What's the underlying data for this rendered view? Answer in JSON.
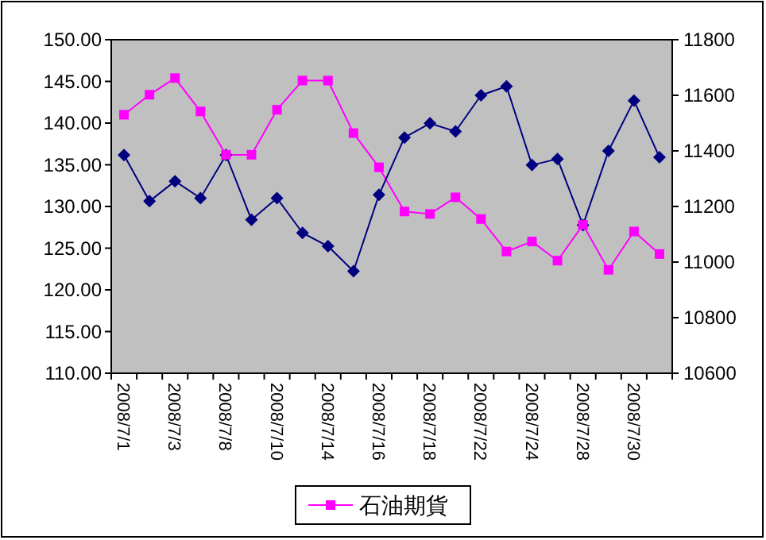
{
  "chart_data": {
    "type": "line",
    "categories": [
      "2008/7/1",
      null,
      "2008/7/3",
      null,
      "2008/7/8",
      null,
      "2008/7/10",
      null,
      "2008/7/14",
      null,
      "2008/7/16",
      null,
      "2008/7/18",
      null,
      "2008/7/22",
      null,
      "2008/7/24",
      null,
      "2008/7/28",
      null,
      "2008/7/30",
      null
    ],
    "series": [
      {
        "name": "石油期貨",
        "color": "#ff00ff",
        "marker": "square",
        "values": [
          141.0,
          143.4,
          145.4,
          141.4,
          136.2,
          136.2,
          141.6,
          145.1,
          145.1,
          138.8,
          134.7,
          129.4,
          129.1,
          131.1,
          128.5,
          124.6,
          125.8,
          123.5,
          127.8,
          122.4,
          127.0,
          124.3
        ]
      },
      {
        "color": "#000080",
        "marker": "diamond",
        "axis": "y2",
        "values": [
          11385,
          11219,
          11291,
          11230,
          11385,
          11152,
          11230,
          11105,
          11057,
          10967,
          11242,
          11448,
          11499,
          11470,
          11600,
          11632,
          11349,
          11371,
          11133,
          11400,
          11581,
          11377
        ]
      }
    ],
    "ylim": [
      110,
      150
    ],
    "yticks": [
      {
        "value": 110,
        "label": "110.00"
      },
      {
        "value": 115,
        "label": "115.00"
      },
      {
        "value": 120,
        "label": "120.00"
      },
      {
        "value": 125,
        "label": "125.00"
      },
      {
        "value": 130,
        "label": "130.00"
      },
      {
        "value": 135,
        "label": "135.00"
      },
      {
        "value": 140,
        "label": "140.00"
      },
      {
        "value": 145,
        "label": "145.00"
      },
      {
        "value": 150,
        "label": "150.00"
      }
    ],
    "y2lim": [
      10600,
      11800
    ],
    "y2ticks": [
      10600,
      10800,
      11000,
      11200,
      11400,
      11600,
      11800
    ],
    "grid": false,
    "legend": "bottom"
  }
}
